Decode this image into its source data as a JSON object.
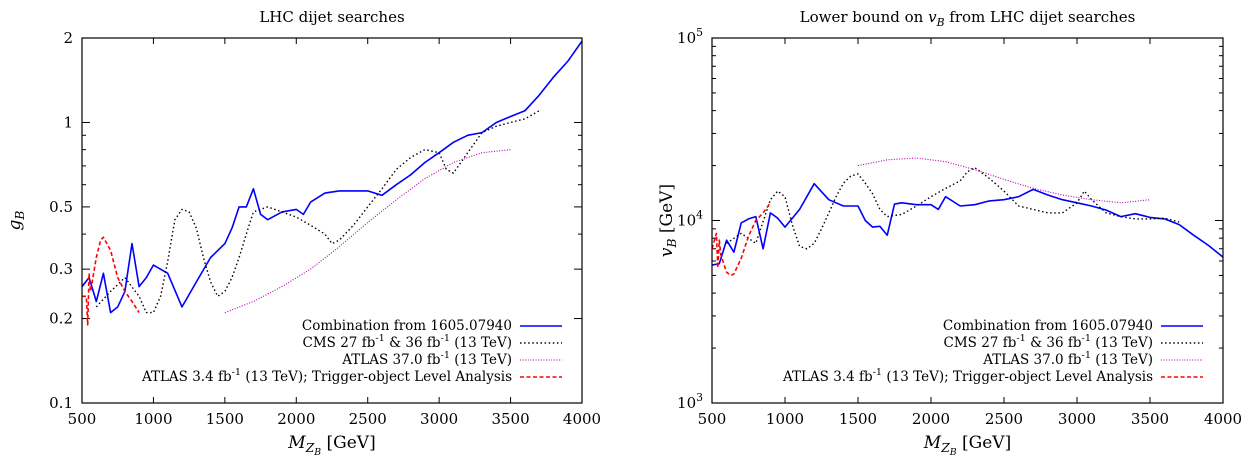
{
  "chart_data": [
    {
      "type": "line",
      "title": "LHC dijet searches",
      "xlabel": "M_{Z_B} [GeV]",
      "ylabel": "g_B",
      "xlim": [
        500,
        4000
      ],
      "ylim": [
        0.1,
        2
      ],
      "yscale": "log",
      "xticks": [
        "500",
        "1000",
        "1500",
        "2000",
        "2500",
        "3000",
        "3500",
        "4000"
      ],
      "yticks": [
        {
          "v": 0.1,
          "label": "0.1"
        },
        {
          "v": 0.2,
          "label": "0.2"
        },
        {
          "v": 0.3,
          "label": "0.3"
        },
        {
          "v": 0.5,
          "label": "0.5"
        },
        {
          "v": 1,
          "label": "1"
        },
        {
          "v": 2,
          "label": "2"
        }
      ],
      "legend_position": "bottom-right",
      "series": [
        {
          "name": "Combination from 1605.07940",
          "color": "#0000ff",
          "style": "solid",
          "x": [
            500,
            550,
            600,
            650,
            700,
            750,
            800,
            850,
            900,
            950,
            1000,
            1100,
            1200,
            1300,
            1400,
            1500,
            1550,
            1600,
            1650,
            1700,
            1750,
            1800,
            1900,
            2000,
            2050,
            2100,
            2200,
            2300,
            2400,
            2500,
            2600,
            2700,
            2800,
            2900,
            3000,
            3100,
            3200,
            3300,
            3400,
            3500,
            3600,
            3700,
            3800,
            3900,
            4000
          ],
          "y": [
            0.26,
            0.28,
            0.23,
            0.29,
            0.21,
            0.22,
            0.25,
            0.37,
            0.26,
            0.28,
            0.31,
            0.29,
            0.22,
            0.27,
            0.33,
            0.37,
            0.42,
            0.5,
            0.5,
            0.58,
            0.47,
            0.45,
            0.48,
            0.49,
            0.47,
            0.52,
            0.56,
            0.57,
            0.57,
            0.57,
            0.55,
            0.6,
            0.65,
            0.72,
            0.78,
            0.85,
            0.9,
            0.92,
            1.0,
            1.05,
            1.1,
            1.25,
            1.45,
            1.65,
            1.95
          ]
        },
        {
          "name": "CMS 27 fb^{-1} & 36 fb^{-1} (13 TeV)",
          "color": "#000000",
          "style": "dotted",
          "x": [
            600,
            700,
            800,
            900,
            950,
            1000,
            1050,
            1100,
            1150,
            1200,
            1250,
            1300,
            1350,
            1400,
            1450,
            1500,
            1550,
            1600,
            1650,
            1700,
            1800,
            1900,
            2000,
            2100,
            2200,
            2250,
            2300,
            2400,
            2500,
            2600,
            2700,
            2800,
            2900,
            3000,
            3050,
            3100,
            3200,
            3300,
            3400,
            3500,
            3600,
            3700
          ],
          "y": [
            0.22,
            0.25,
            0.28,
            0.24,
            0.21,
            0.21,
            0.24,
            0.32,
            0.45,
            0.49,
            0.48,
            0.42,
            0.33,
            0.27,
            0.24,
            0.25,
            0.28,
            0.33,
            0.4,
            0.48,
            0.5,
            0.48,
            0.46,
            0.43,
            0.4,
            0.37,
            0.38,
            0.43,
            0.5,
            0.58,
            0.68,
            0.75,
            0.8,
            0.78,
            0.68,
            0.66,
            0.78,
            0.92,
            0.97,
            1.0,
            1.03,
            1.1
          ]
        },
        {
          "name": "ATLAS 37.0 fb^{-1} (13 TeV)",
          "color": "#b000b0",
          "style": "dotted-fine",
          "x": [
            1500,
            1700,
            1900,
            2100,
            2300,
            2500,
            2700,
            2900,
            3100,
            3300,
            3500
          ],
          "y": [
            0.21,
            0.23,
            0.26,
            0.3,
            0.36,
            0.44,
            0.53,
            0.63,
            0.72,
            0.78,
            0.8
          ]
        },
        {
          "name": "ATLAS 3.4 fb^{-1} (13 TeV); Trigger-object Level Analysis",
          "color": "#ff0000",
          "style": "dashed",
          "x": [
            500,
            530,
            540,
            550,
            560,
            600,
            630,
            650,
            700,
            750,
            800,
            850,
            900
          ],
          "y": [
            0.24,
            0.24,
            0.19,
            0.29,
            0.25,
            0.33,
            0.38,
            0.39,
            0.35,
            0.28,
            0.25,
            0.23,
            0.21
          ]
        }
      ]
    },
    {
      "type": "line",
      "title": "Lower bound on v_B from LHC dijet searches",
      "xlabel": "M_{Z_B} [GeV]",
      "ylabel": "v_B [GeV]",
      "xlim": [
        500,
        4000
      ],
      "ylim": [
        1000,
        100000
      ],
      "yscale": "log",
      "xticks": [
        "500",
        "1000",
        "1500",
        "2000",
        "2500",
        "3000",
        "3500",
        "4000"
      ],
      "yticks": [
        {
          "v": 1000,
          "label": "10^3"
        },
        {
          "v": 10000,
          "label": "10^4"
        },
        {
          "v": 100000,
          "label": "10^5"
        }
      ],
      "legend_position": "bottom-right",
      "series": [
        {
          "name": "Combination from 1605.07940",
          "color": "#0000ff",
          "style": "solid",
          "x": [
            500,
            550,
            600,
            650,
            700,
            750,
            800,
            850,
            900,
            950,
            1000,
            1100,
            1200,
            1300,
            1400,
            1500,
            1550,
            1600,
            1650,
            1700,
            1750,
            1800,
            1900,
            2000,
            2050,
            2100,
            2200,
            2300,
            2400,
            2500,
            2600,
            2700,
            2800,
            2900,
            3000,
            3100,
            3200,
            3300,
            3400,
            3500,
            3600,
            3700,
            3800,
            3900,
            4000
          ],
          "y": [
            5700,
            5800,
            7800,
            6700,
            9700,
            10200,
            10500,
            7000,
            11000,
            10300,
            9200,
            11500,
            15900,
            13000,
            12000,
            12000,
            10000,
            9200,
            9300,
            8300,
            12300,
            12500,
            12200,
            12200,
            11500,
            13500,
            12000,
            12200,
            12800,
            13000,
            13500,
            14800,
            13800,
            13000,
            12500,
            12000,
            11400,
            10500,
            10900,
            10400,
            10200,
            9500,
            8300,
            7300,
            6300
          ]
        },
        {
          "name": "CMS 27 fb^{-1} & 36 fb^{-1} (13 TeV)",
          "color": "#000000",
          "style": "dotted",
          "x": [
            600,
            700,
            800,
            900,
            950,
            1000,
            1050,
            1100,
            1150,
            1200,
            1250,
            1300,
            1350,
            1400,
            1450,
            1500,
            1550,
            1600,
            1650,
            1700,
            1800,
            1900,
            2000,
            2100,
            2200,
            2250,
            2300,
            2400,
            2500,
            2600,
            2700,
            2800,
            2900,
            3000,
            3050,
            3100,
            3200,
            3300,
            3400,
            3500,
            3600,
            3700
          ],
          "y": [
            7500,
            8500,
            7500,
            13000,
            14500,
            13500,
            9500,
            7200,
            7000,
            7500,
            9000,
            11000,
            13500,
            16000,
            17500,
            18000,
            16000,
            14000,
            11500,
            10500,
            10800,
            12000,
            13500,
            15000,
            16500,
            18500,
            19500,
            17000,
            14500,
            12000,
            11500,
            11000,
            11000,
            12500,
            14500,
            13000,
            11000,
            10500,
            10200,
            10200,
            10300,
            9800
          ]
        },
        {
          "name": "ATLAS 37.0 fb^{-1} (13 TeV)",
          "color": "#b000b0",
          "style": "dotted-fine",
          "x": [
            1500,
            1700,
            1900,
            2100,
            2300,
            2500,
            2700,
            2900,
            3100,
            3300,
            3500
          ],
          "y": [
            20000,
            21500,
            22000,
            21000,
            19000,
            16800,
            15000,
            13800,
            13000,
            12500,
            13000
          ]
        },
        {
          "name": "ATLAS 3.4 fb^{-1} (13 TeV); Trigger-object Level Analysis",
          "color": "#ff0000",
          "style": "dashed",
          "x": [
            500,
            530,
            540,
            550,
            560,
            600,
            630,
            650,
            700,
            750,
            800,
            850,
            900
          ],
          "y": [
            7000,
            8500,
            5500,
            7800,
            6500,
            5200,
            5000,
            5100,
            6200,
            8200,
            10000,
            11000,
            12500
          ]
        }
      ]
    }
  ]
}
